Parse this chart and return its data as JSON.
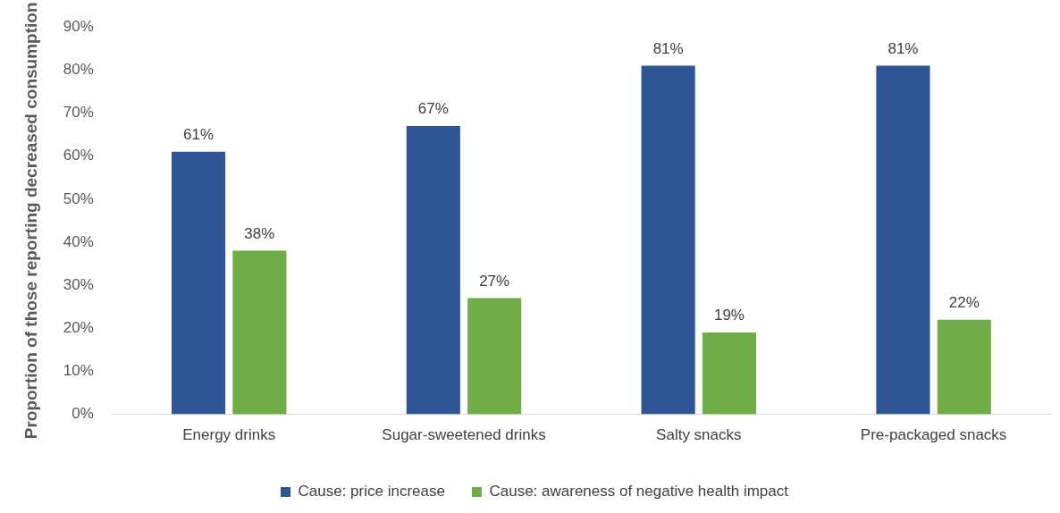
{
  "chart_data": {
    "type": "bar",
    "ylabel": "Proportion of those reporting decreased consumption",
    "categories": [
      "Energy drinks",
      "Sugar-sweetened drinks",
      "Salty snacks",
      "Pre-packaged snacks"
    ],
    "series": [
      {
        "name": "Cause: price increase",
        "color": "#2f5597",
        "values": [
          61,
          67,
          81,
          81
        ],
        "value_labels": [
          "61%",
          "67%",
          "81%",
          "81%"
        ]
      },
      {
        "name": "Cause: awareness of negative health impact",
        "color": "#70ad47",
        "values": [
          38,
          27,
          19,
          22
        ],
        "value_labels": [
          "38%",
          "27%",
          "19%",
          "22%"
        ]
      }
    ],
    "ylim": [
      0,
      90
    ],
    "yticks": [
      {
        "value": 0,
        "label": "0%"
      },
      {
        "value": 10,
        "label": "10%"
      },
      {
        "value": 20,
        "label": "20%"
      },
      {
        "value": 30,
        "label": "30%"
      },
      {
        "value": 40,
        "label": "40%"
      },
      {
        "value": 50,
        "label": "50%"
      },
      {
        "value": 60,
        "label": "60%"
      },
      {
        "value": 70,
        "label": "70%"
      },
      {
        "value": 80,
        "label": "80%"
      },
      {
        "value": 90,
        "label": "90%"
      }
    ],
    "grid": false,
    "legend": "bottom"
  }
}
